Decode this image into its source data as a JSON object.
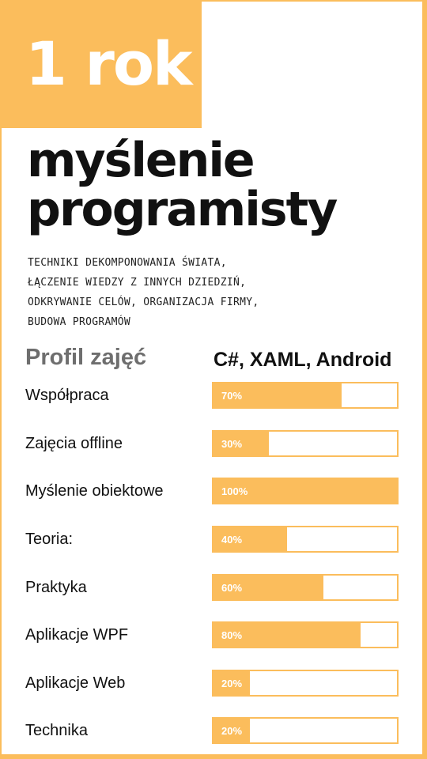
{
  "colors": {
    "accent": "#fbbd5c",
    "text": "#111111",
    "heading_gray": "#6e6e6e"
  },
  "badge": "1 rok",
  "title": {
    "line1": "myślenie",
    "line2": "programisty"
  },
  "subtitle": [
    "TECHNIKI DEKOMPONOWANIA ŚWIATA,",
    "ŁĄCZENIE WIEDZY Z INNYCH DZIEDZIŃ,",
    "ODKRYWANIE CELÓW, ORGANIZACJA FIRMY,",
    "BUDOWA PROGRAMÓW"
  ],
  "profile_heading": "Profil zajęć",
  "tech_heading": "C#, XAML, Android",
  "skills": [
    {
      "label": "Współpraca",
      "percent": 70,
      "value_text": "70%"
    },
    {
      "label": "Zajęcia offline",
      "percent": 30,
      "value_text": "30%"
    },
    {
      "label": "Myślenie obiektowe",
      "percent": 100,
      "value_text": "100%"
    },
    {
      "label": "Teoria:",
      "percent": 40,
      "value_text": "40%"
    },
    {
      "label": "Praktyka",
      "percent": 60,
      "value_text": "60%"
    },
    {
      "label": "Aplikacje WPF",
      "percent": 80,
      "value_text": "80%"
    },
    {
      "label": "Aplikacje Web",
      "percent": 20,
      "value_text": "20%"
    },
    {
      "label": "Technika",
      "percent": 20,
      "value_text": "20%"
    }
  ]
}
